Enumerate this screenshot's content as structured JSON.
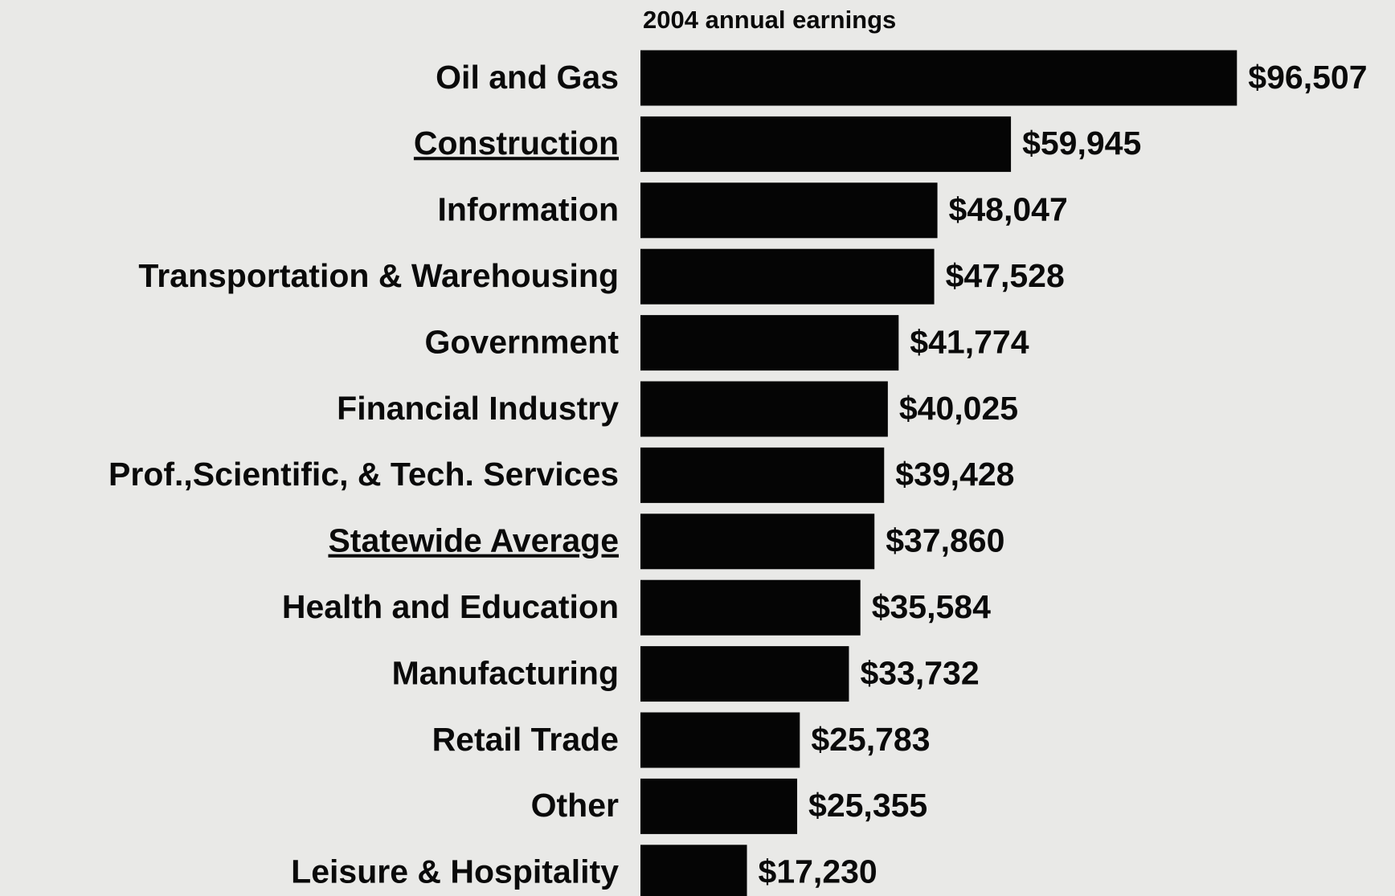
{
  "chart_data": {
    "type": "barh",
    "title": "2004 annual earnings",
    "categories": [
      "Oil and Gas",
      "Construction",
      "Information",
      "Transportation & Warehousing",
      "Government",
      "Financial Industry",
      "Prof.,Scientific, & Tech. Services",
      "Statewide Average",
      "Health and Education",
      "Manufacturing",
      "Retail Trade",
      "Other",
      "Leisure & Hospitality"
    ],
    "values": [
      96507,
      59945,
      48047,
      47528,
      41774,
      40025,
      39428,
      37860,
      35584,
      33732,
      25783,
      25355,
      17230
    ],
    "value_labels": [
      "$96,507",
      "$59,945",
      "$48,047",
      "$47,528",
      "$41,774",
      "$40,025",
      "$39,428",
      "$37,860",
      "$35,584",
      "$33,732",
      "$25,783",
      "$25,355",
      "$17,230"
    ],
    "color": "#050505",
    "underlined": [
      1,
      7
    ],
    "xlim": [
      0,
      120000
    ]
  }
}
